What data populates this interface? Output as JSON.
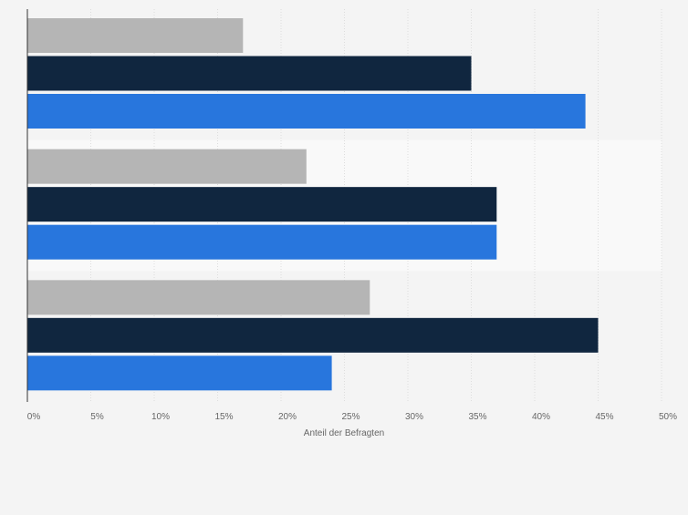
{
  "chart_data": {
    "type": "bar",
    "orientation": "horizontal",
    "title": "",
    "xlabel": "Anteil der Befragten",
    "ylabel": "",
    "xlim": [
      0,
      50
    ],
    "x_ticks": [
      "0%",
      "5%",
      "10%",
      "15%",
      "20%",
      "25%",
      "30%",
      "35%",
      "40%",
      "45%",
      "50%"
    ],
    "grid": true,
    "categories": [
      "",
      "",
      ""
    ],
    "series": [
      {
        "name": "",
        "color": "#b5b5b5",
        "values": [
          17,
          22,
          27
        ]
      },
      {
        "name": "",
        "color": "#10263f",
        "values": [
          35,
          37,
          45
        ]
      },
      {
        "name": "",
        "color": "#2876dd",
        "values": [
          44,
          37,
          24
        ]
      }
    ]
  }
}
